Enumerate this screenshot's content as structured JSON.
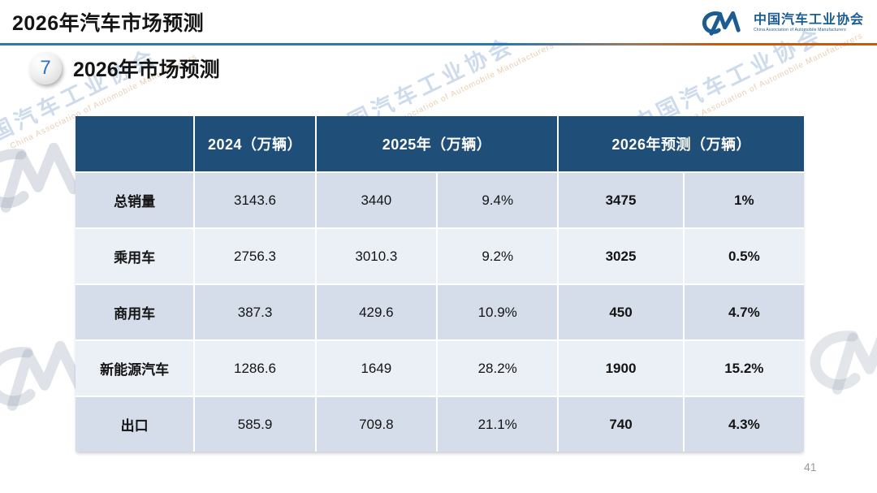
{
  "page": {
    "title": "2026年汽车市场预测",
    "page_number": "41"
  },
  "logo": {
    "monogram": "CM",
    "name_cn": "中国汽车工业协会",
    "name_en": "China Association of Automobile Manufacturers",
    "color": "#1B5C93"
  },
  "section": {
    "number": "7",
    "title": "2026年市场预测"
  },
  "table": {
    "header": {
      "corner": "",
      "col_2024": "2024（万辆）",
      "col_2025": "2025年（万辆）",
      "col_2026": "2026年预测（万辆）"
    },
    "rows": [
      {
        "label": "总销量",
        "v2024": "3143.6",
        "v2025": "3440",
        "g2025": "9.4%",
        "v2026": "3475",
        "g2026": "1%"
      },
      {
        "label": "乘用车",
        "v2024": "2756.3",
        "v2025": "3010.3",
        "g2025": "9.2%",
        "v2026": "3025",
        "g2026": "0.5%"
      },
      {
        "label": "商用车",
        "v2024": "387.3",
        "v2025": "429.6",
        "g2025": "10.9%",
        "v2026": "450",
        "g2026": "4.7%"
      },
      {
        "label": "新能源汽车",
        "v2024": "1286.6",
        "v2025": "1649",
        "g2025": "28.2%",
        "v2026": "1900",
        "g2026": "15.2%"
      },
      {
        "label": "出口",
        "v2024": "585.9",
        "v2025": "709.8",
        "g2025": "21.1%",
        "v2026": "740",
        "g2026": "4.3%"
      }
    ]
  },
  "watermark": {
    "text_cn": "中国汽车工业协会",
    "text_en": "China Association of Automobile Manufacturers"
  },
  "colors": {
    "header_bg": "#1F4E79",
    "row_odd": "#D5DDEA",
    "row_even": "#EBEFF6",
    "logo_blue": "#1B5C93",
    "line_blue": "#2E75B6",
    "line_orange": "#C55A11"
  }
}
